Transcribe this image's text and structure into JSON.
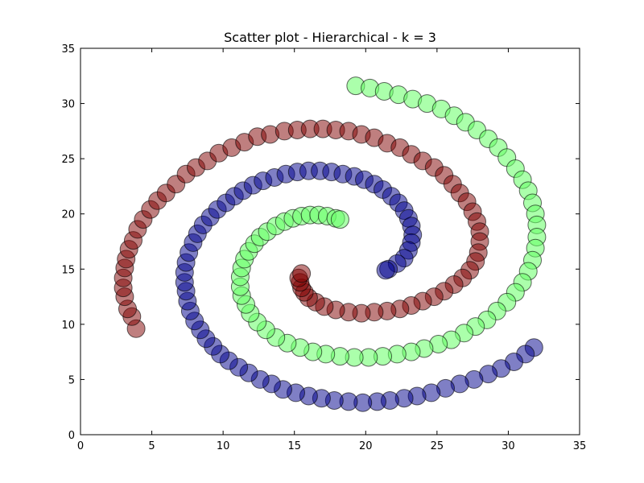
{
  "chart_data": {
    "type": "scatter",
    "title": "Scatter plot - Hierarchical - k = 3",
    "xlabel": "",
    "ylabel": "",
    "xlim": [
      0,
      35
    ],
    "ylim": [
      0,
      35
    ],
    "xticks": [
      "0",
      "5",
      "10",
      "15",
      "20",
      "25",
      "30",
      "35"
    ],
    "yticks": [
      "0",
      "5",
      "10",
      "15",
      "20",
      "25",
      "30",
      "35"
    ],
    "grid": false,
    "legend": "none",
    "series": [
      {
        "color": "#800000",
        "points": [
          [
            3.9,
            9.6
          ],
          [
            3.6,
            10.7
          ],
          [
            3.3,
            11.4
          ],
          [
            3.1,
            12.5
          ],
          [
            3.0,
            13.3
          ],
          [
            3.0,
            14.2
          ],
          [
            3.1,
            15.1
          ],
          [
            3.2,
            15.9
          ],
          [
            3.4,
            16.8
          ],
          [
            3.7,
            17.6
          ],
          [
            4.0,
            18.6
          ],
          [
            4.4,
            19.5
          ],
          [
            4.9,
            20.4
          ],
          [
            5.4,
            21.2
          ],
          [
            6.0,
            21.9
          ],
          [
            6.7,
            22.7
          ],
          [
            7.4,
            23.6
          ],
          [
            8.1,
            24.2
          ],
          [
            8.9,
            24.8
          ],
          [
            9.7,
            25.5
          ],
          [
            10.6,
            26.0
          ],
          [
            11.5,
            26.5
          ],
          [
            12.4,
            27.0
          ],
          [
            13.3,
            27.2
          ],
          [
            14.3,
            27.5
          ],
          [
            15.2,
            27.6
          ],
          [
            16.1,
            27.7
          ],
          [
            17.0,
            27.7
          ],
          [
            17.9,
            27.6
          ],
          [
            18.8,
            27.5
          ],
          [
            19.7,
            27.2
          ],
          [
            20.6,
            26.9
          ],
          [
            21.5,
            26.4
          ],
          [
            22.4,
            26.0
          ],
          [
            23.2,
            25.4
          ],
          [
            24.0,
            24.8
          ],
          [
            24.8,
            24.2
          ],
          [
            25.5,
            23.5
          ],
          [
            26.1,
            22.7
          ],
          [
            26.6,
            21.9
          ],
          [
            27.1,
            21.1
          ],
          [
            27.5,
            20.2
          ],
          [
            27.8,
            19.3
          ],
          [
            28.0,
            18.4
          ],
          [
            28.0,
            17.5
          ],
          [
            27.9,
            16.5
          ],
          [
            27.7,
            15.7
          ],
          [
            27.3,
            14.9
          ],
          [
            26.8,
            14.2
          ],
          [
            26.2,
            13.6
          ],
          [
            25.5,
            13.0
          ],
          [
            24.8,
            12.5
          ],
          [
            24.0,
            12.1
          ],
          [
            23.2,
            11.7
          ],
          [
            22.4,
            11.4
          ],
          [
            21.5,
            11.2
          ],
          [
            20.6,
            11.1
          ],
          [
            19.7,
            11.0
          ],
          [
            18.8,
            11.1
          ],
          [
            17.9,
            11.3
          ],
          [
            17.1,
            11.6
          ],
          [
            16.5,
            12.0
          ],
          [
            16.0,
            12.4
          ],
          [
            15.7,
            12.9
          ],
          [
            15.5,
            13.3
          ],
          [
            15.4,
            13.8
          ],
          [
            15.3,
            14.2
          ],
          [
            15.5,
            14.6
          ]
        ]
      },
      {
        "color": "#00008b",
        "points": [
          [
            31.8,
            7.9
          ],
          [
            31.2,
            7.3
          ],
          [
            30.4,
            6.6
          ],
          [
            29.5,
            6.0
          ],
          [
            28.6,
            5.5
          ],
          [
            27.6,
            5.0
          ],
          [
            26.6,
            4.6
          ],
          [
            25.6,
            4.2
          ],
          [
            24.6,
            3.8
          ],
          [
            23.6,
            3.5
          ],
          [
            22.7,
            3.3
          ],
          [
            21.7,
            3.1
          ],
          [
            20.8,
            3.0
          ],
          [
            19.8,
            2.9
          ],
          [
            18.8,
            3.0
          ],
          [
            17.8,
            3.1
          ],
          [
            16.9,
            3.3
          ],
          [
            16.0,
            3.5
          ],
          [
            15.1,
            3.8
          ],
          [
            14.2,
            4.1
          ],
          [
            13.4,
            4.6
          ],
          [
            12.6,
            5.0
          ],
          [
            11.8,
            5.6
          ],
          [
            11.1,
            6.1
          ],
          [
            10.4,
            6.7
          ],
          [
            9.8,
            7.3
          ],
          [
            9.3,
            8.0
          ],
          [
            8.8,
            8.7
          ],
          [
            8.4,
            9.5
          ],
          [
            8.0,
            10.3
          ],
          [
            7.7,
            11.2
          ],
          [
            7.5,
            12.1
          ],
          [
            7.4,
            13.0
          ],
          [
            7.3,
            13.8
          ],
          [
            7.3,
            14.7
          ],
          [
            7.4,
            15.6
          ],
          [
            7.6,
            16.5
          ],
          [
            7.9,
            17.4
          ],
          [
            8.2,
            18.2
          ],
          [
            8.6,
            19.0
          ],
          [
            9.1,
            19.7
          ],
          [
            9.6,
            20.4
          ],
          [
            10.2,
            21.0
          ],
          [
            10.8,
            21.6
          ],
          [
            11.4,
            22.1
          ],
          [
            12.1,
            22.6
          ],
          [
            12.8,
            23.0
          ],
          [
            13.6,
            23.3
          ],
          [
            14.4,
            23.6
          ],
          [
            15.2,
            23.8
          ],
          [
            16.0,
            23.9
          ],
          [
            16.8,
            23.9
          ],
          [
            17.6,
            23.8
          ],
          [
            18.4,
            23.6
          ],
          [
            19.2,
            23.4
          ],
          [
            19.9,
            23.1
          ],
          [
            20.6,
            22.7
          ],
          [
            21.2,
            22.2
          ],
          [
            21.8,
            21.6
          ],
          [
            22.3,
            21.0
          ],
          [
            22.7,
            20.3
          ],
          [
            23.0,
            19.6
          ],
          [
            23.2,
            18.9
          ],
          [
            23.3,
            18.1
          ],
          [
            23.2,
            17.4
          ],
          [
            23.0,
            16.7
          ],
          [
            22.7,
            16.0
          ],
          [
            22.2,
            15.5
          ],
          [
            21.6,
            15.0
          ],
          [
            21.4,
            14.9
          ]
        ]
      },
      {
        "color": "#66ff66",
        "points": [
          [
            19.3,
            31.6
          ],
          [
            20.3,
            31.4
          ],
          [
            21.3,
            31.1
          ],
          [
            22.3,
            30.8
          ],
          [
            23.3,
            30.4
          ],
          [
            24.3,
            30.0
          ],
          [
            25.3,
            29.5
          ],
          [
            26.2,
            28.9
          ],
          [
            27.0,
            28.3
          ],
          [
            27.8,
            27.6
          ],
          [
            28.6,
            26.8
          ],
          [
            29.3,
            26.0
          ],
          [
            29.9,
            25.1
          ],
          [
            30.5,
            24.1
          ],
          [
            31.0,
            23.1
          ],
          [
            31.4,
            22.1
          ],
          [
            31.7,
            21.0
          ],
          [
            31.9,
            20.0
          ],
          [
            32.0,
            19.0
          ],
          [
            32.0,
            17.9
          ],
          [
            31.9,
            16.9
          ],
          [
            31.7,
            15.8
          ],
          [
            31.4,
            14.8
          ],
          [
            31.0,
            13.8
          ],
          [
            30.5,
            12.9
          ],
          [
            29.9,
            12.0
          ],
          [
            29.2,
            11.2
          ],
          [
            28.5,
            10.4
          ],
          [
            27.7,
            9.8
          ],
          [
            26.9,
            9.2
          ],
          [
            26.0,
            8.6
          ],
          [
            25.1,
            8.2
          ],
          [
            24.1,
            7.8
          ],
          [
            23.2,
            7.5
          ],
          [
            22.2,
            7.3
          ],
          [
            21.2,
            7.1
          ],
          [
            20.2,
            7.0
          ],
          [
            19.2,
            7.0
          ],
          [
            18.2,
            7.1
          ],
          [
            17.2,
            7.3
          ],
          [
            16.3,
            7.5
          ],
          [
            15.4,
            7.9
          ],
          [
            14.5,
            8.3
          ],
          [
            13.7,
            8.8
          ],
          [
            13.0,
            9.5
          ],
          [
            12.4,
            10.2
          ],
          [
            11.9,
            11.0
          ],
          [
            11.6,
            11.8
          ],
          [
            11.3,
            12.6
          ],
          [
            11.2,
            13.4
          ],
          [
            11.2,
            14.3
          ],
          [
            11.3,
            15.1
          ],
          [
            11.5,
            15.9
          ],
          [
            11.8,
            16.6
          ],
          [
            12.2,
            17.3
          ],
          [
            12.6,
            17.9
          ],
          [
            13.1,
            18.4
          ],
          [
            13.7,
            18.9
          ],
          [
            14.3,
            19.3
          ],
          [
            14.9,
            19.6
          ],
          [
            15.5,
            19.8
          ],
          [
            16.1,
            19.9
          ],
          [
            16.7,
            19.9
          ],
          [
            17.3,
            19.8
          ],
          [
            17.9,
            19.6
          ],
          [
            18.2,
            19.5
          ]
        ]
      }
    ]
  }
}
